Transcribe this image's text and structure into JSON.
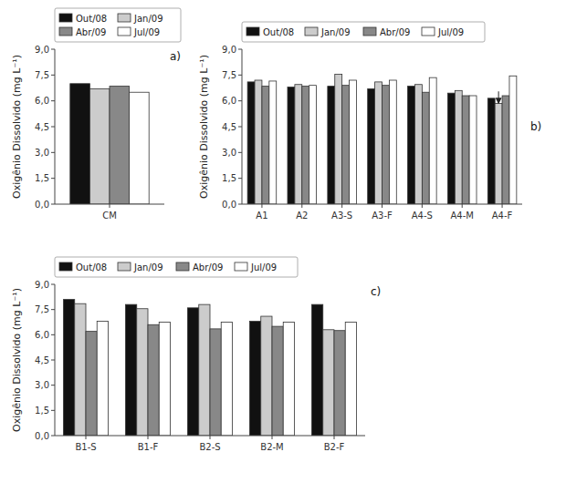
{
  "chart_data": [
    {
      "type": "bar",
      "categories": [
        "CM"
      ],
      "series": [
        {
          "name": "Out/08",
          "color": "#111111",
          "values": [
            7.0
          ]
        },
        {
          "name": "Jan/09",
          "color": "#cccccc",
          "values": [
            6.7
          ]
        },
        {
          "name": "Abr/09",
          "color": "#888888",
          "values": [
            6.85
          ]
        },
        {
          "name": "Jul/09",
          "color": "#ffffff",
          "values": [
            6.5
          ]
        }
      ],
      "y_label": "Oxigênio Dissolvido (mg L⁻¹)",
      "ylim": [
        0,
        9.0
      ],
      "yticks": [
        {
          "value": 0.0,
          "label": "0,0"
        },
        {
          "value": 1.5,
          "label": "1,5"
        },
        {
          "value": 3.0,
          "label": "3,0"
        },
        {
          "value": 4.5,
          "label": "4,5"
        },
        {
          "value": 6.0,
          "label": "6,0"
        },
        {
          "value": 7.5,
          "label": "7,5"
        },
        {
          "value": 9.0,
          "label": "9,0"
        }
      ],
      "annotations": [
        {
          "text": "a)"
        }
      ],
      "legend": "top",
      "grid": false
    },
    {
      "type": "bar",
      "categories": [
        "A1",
        "A2",
        "A3-S",
        "A3-F",
        "A4-S",
        "A4-M",
        "A4-F"
      ],
      "series": [
        {
          "name": "Out/08",
          "color": "#111111",
          "values": [
            7.1,
            6.8,
            6.85,
            6.7,
            6.85,
            6.45,
            6.15
          ]
        },
        {
          "name": "Jan/09",
          "color": "#cccccc",
          "values": [
            7.2,
            6.95,
            7.55,
            7.1,
            6.95,
            6.6,
            5.85
          ]
        },
        {
          "name": "Abr/09",
          "color": "#888888",
          "values": [
            6.85,
            6.85,
            6.9,
            6.9,
            6.5,
            6.3,
            6.3
          ]
        },
        {
          "name": "Jul/09",
          "color": "#ffffff",
          "values": [
            7.15,
            6.9,
            7.2,
            7.2,
            7.35,
            6.3,
            7.45
          ]
        }
      ],
      "y_label": "Oxigênio Dissolvido (mg L⁻¹)",
      "ylim": [
        0,
        9.0
      ],
      "yticks": [
        {
          "value": 0.0,
          "label": "0,0"
        },
        {
          "value": 1.5,
          "label": "1,5"
        },
        {
          "value": 3.0,
          "label": "3,0"
        },
        {
          "value": 4.5,
          "label": "4,5"
        },
        {
          "value": 6.0,
          "label": "6,0"
        },
        {
          "value": 7.5,
          "label": "7,5"
        },
        {
          "value": 9.0,
          "label": "9,0"
        }
      ],
      "annotations": [
        {
          "text": "b)"
        },
        {
          "category": "A4-F",
          "series": "Jan/09",
          "y_from": 6.55,
          "y": 5.85
        }
      ],
      "legend": "top",
      "grid": false
    },
    {
      "type": "bar",
      "categories": [
        "B1-S",
        "B1-F",
        "B2-S",
        "B2-M",
        "B2-F"
      ],
      "series": [
        {
          "name": "Out/08",
          "color": "#111111",
          "values": [
            8.1,
            7.8,
            7.6,
            6.8,
            7.8
          ]
        },
        {
          "name": "Jan/09",
          "color": "#cccccc",
          "values": [
            7.85,
            7.55,
            7.8,
            7.1,
            6.3
          ]
        },
        {
          "name": "Abr/09",
          "color": "#888888",
          "values": [
            6.2,
            6.6,
            6.35,
            6.5,
            6.25
          ]
        },
        {
          "name": "Jul/09",
          "color": "#ffffff",
          "values": [
            6.8,
            6.75,
            6.75,
            6.75,
            6.75
          ]
        }
      ],
      "y_label": "Oxigênio Dissolvido (mg L⁻¹)",
      "ylim": [
        0,
        9.0
      ],
      "yticks": [
        {
          "value": 0.0,
          "label": "0,0"
        },
        {
          "value": 1.5,
          "label": "1,5"
        },
        {
          "value": 3.0,
          "label": "3,0"
        },
        {
          "value": 4.5,
          "label": "4,5"
        },
        {
          "value": 6.0,
          "label": "6,0"
        },
        {
          "value": 7.5,
          "label": "7,5"
        },
        {
          "value": 9.0,
          "label": "9,0"
        }
      ],
      "annotations": [
        {
          "text": "c)"
        }
      ],
      "legend": "top",
      "grid": false
    }
  ]
}
